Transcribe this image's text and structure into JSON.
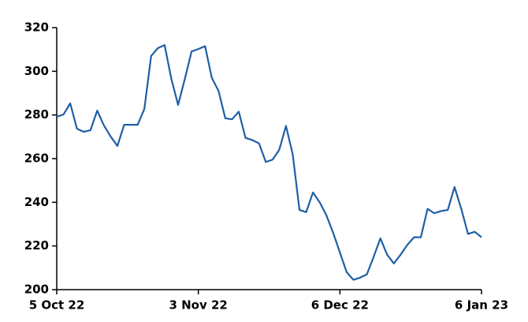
{
  "chart_data": {
    "type": "line",
    "categories": [
      "5 Oct 22",
      null,
      null,
      null,
      null,
      null,
      null,
      null,
      null,
      null,
      null,
      null,
      null,
      null,
      null,
      null,
      null,
      null,
      null,
      null,
      null,
      "3 Nov 22",
      null,
      null,
      null,
      null,
      null,
      null,
      null,
      null,
      null,
      null,
      null,
      null,
      null,
      null,
      null,
      null,
      null,
      null,
      null,
      null,
      "6 Dec 22",
      null,
      null,
      null,
      null,
      null,
      null,
      null,
      null,
      null,
      null,
      null,
      null,
      null,
      null,
      null,
      null,
      null,
      null,
      null,
      null,
      "6 Jan 23"
    ],
    "values": [
      279.2,
      280.2,
      285.3,
      273.7,
      272.3,
      273,
      282,
      275.2,
      270.1,
      265.8,
      275.5,
      275.5,
      275.5,
      282.8,
      307,
      310.6,
      312,
      296.5,
      284.6,
      296.5,
      309.1,
      310.2,
      311.5,
      297,
      291,
      278.5,
      278,
      281.5,
      269.5,
      268.5,
      267,
      258.5,
      259.5,
      264,
      275,
      262,
      236.5,
      235.5,
      244.5,
      240,
      234,
      226,
      217,
      208,
      204.5,
      205.5,
      207,
      215,
      223.5,
      216,
      212,
      216,
      220.5,
      224,
      224,
      237,
      235,
      236,
      236.5,
      247,
      237,
      225.5,
      226.5,
      224
    ],
    "color": "#1f5fa6",
    "ylim": [
      200,
      320
    ],
    "yticks": [
      200,
      220,
      240,
      260,
      280,
      300,
      320
    ]
  }
}
